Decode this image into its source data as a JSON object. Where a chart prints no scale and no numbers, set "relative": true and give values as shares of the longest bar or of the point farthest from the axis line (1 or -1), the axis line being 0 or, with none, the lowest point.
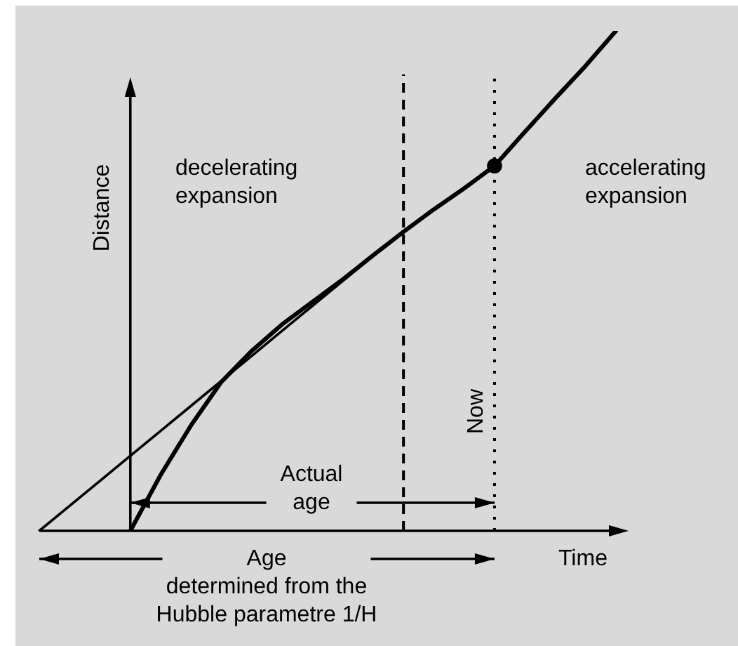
{
  "chart_data": {
    "type": "line",
    "relative": true,
    "xlabel": "Time",
    "ylabel": "Distance",
    "legend": false,
    "tick_labels": false,
    "categories": [
      null,
      null,
      null,
      null,
      null,
      null,
      null,
      null,
      null,
      null,
      null,
      null,
      null,
      null,
      null,
      null,
      null,
      null,
      null,
      null
    ],
    "series": [
      {
        "color": "#000000",
        "marker": "none",
        "values": [
          null,
          null,
          null,
          0,
          0.112,
          0.211,
          0.298,
          0.36,
          0.413,
          0.458,
          0.503,
          0.551,
          0.598,
          0.643,
          0.685,
          0.73,
          0.798,
          0.865,
          0.93,
          1.0
        ]
      },
      {
        "color": "#000000",
        "marker": "none",
        "values": [
          0,
          0.05,
          0.1,
          0.15,
          0.2,
          0.25,
          0.3,
          0.35,
          0.4,
          0.45,
          0.5,
          0.55,
          0.6,
          null,
          null,
          null,
          null,
          null,
          null,
          null
        ]
      },
      {
        "color": "#000000",
        "marker": "circle",
        "values": [
          null,
          null,
          null,
          null,
          null,
          null,
          null,
          null,
          null,
          null,
          null,
          null,
          null,
          null,
          null,
          0.73,
          null,
          null,
          null,
          null
        ]
      }
    ],
    "annotations": [
      "decelerating\nexpansion",
      "accelerating\nexpansion",
      "Actual\nage",
      "Age\ndetermined from the\nHubble parametre 1/H",
      "Now"
    ]
  }
}
